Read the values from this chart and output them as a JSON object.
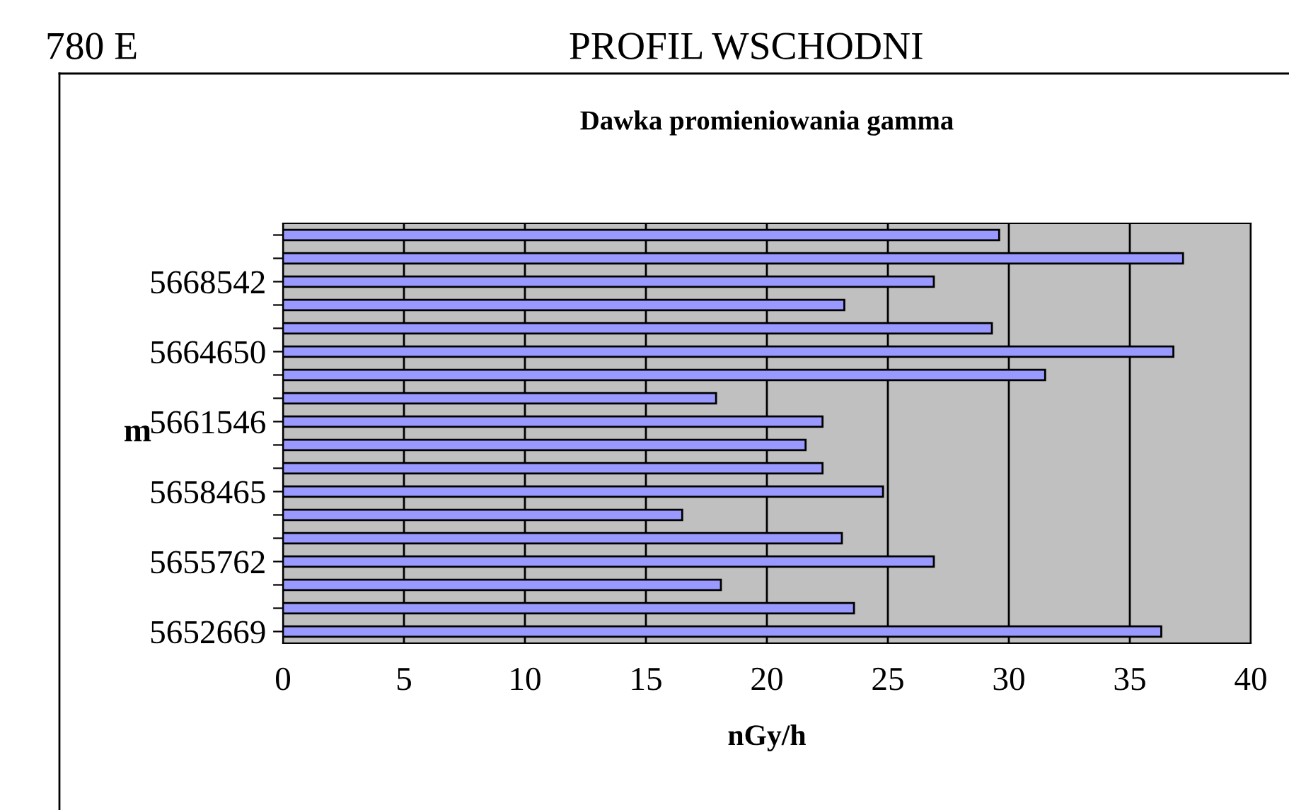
{
  "chart_data": {
    "type": "bar",
    "orientation": "horizontal",
    "title": "PROFIL WSCHODNI",
    "subtitle": "Dawka promieniowania gamma",
    "annotations": [
      "780 E"
    ],
    "xlabel": "nGy/h",
    "ylabel": "m",
    "categories": [
      null,
      null,
      "5668542",
      null,
      null,
      "5664650",
      null,
      null,
      "5661546",
      null,
      null,
      "5658465",
      null,
      null,
      "5655762",
      null,
      null,
      "5652669"
    ],
    "values": [
      29.6,
      37.2,
      26.9,
      23.2,
      29.3,
      36.8,
      31.5,
      17.9,
      22.3,
      21.6,
      22.3,
      24.8,
      16.5,
      23.1,
      26.9,
      18.1,
      23.6,
      36.3
    ],
    "color": "#9999ff",
    "xlim": [
      0,
      40
    ],
    "xticks": [
      0,
      5,
      10,
      15,
      20,
      25,
      30,
      35,
      40
    ],
    "grid": "x",
    "legend": false
  }
}
